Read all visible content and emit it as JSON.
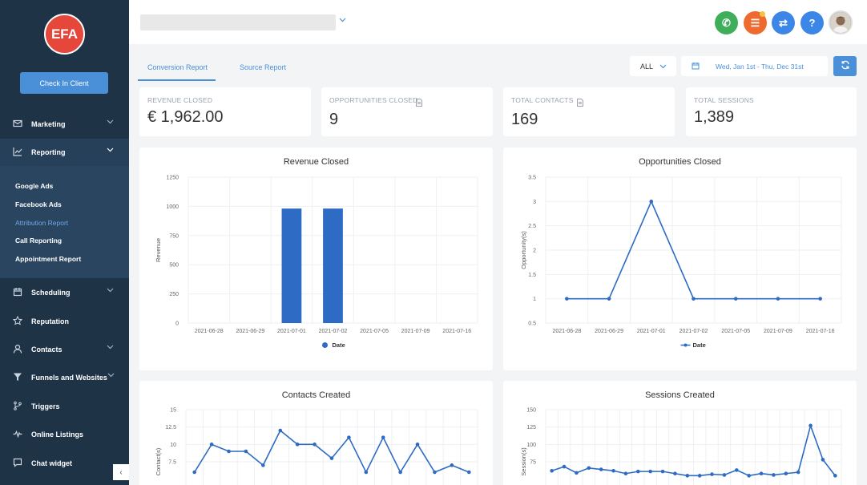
{
  "sidebar": {
    "logo_text": "EFA",
    "checkin_label": "Check In Client",
    "items": [
      {
        "label": "Marketing",
        "icon": "mail-icon"
      },
      {
        "label": "Reporting",
        "icon": "chart-icon"
      },
      {
        "label": "Scheduling",
        "icon": "calendar-icon"
      },
      {
        "label": "Reputation",
        "icon": "star-icon"
      },
      {
        "label": "Contacts",
        "icon": "person-icon"
      },
      {
        "label": "Funnels and Websites",
        "icon": "filter-icon"
      },
      {
        "label": "Triggers",
        "icon": "branch-icon"
      },
      {
        "label": "Online Listings",
        "icon": "pulse-icon"
      },
      {
        "label": "Chat widget",
        "icon": "chat-icon"
      }
    ],
    "sub_items": [
      "Google Ads",
      "Facebook Ads",
      "Attribution Report",
      "Call Reporting",
      "Appointment Report"
    ],
    "collapse_glyph": "‹"
  },
  "toolbar": {
    "phone_glyph": "✆",
    "list_glyph": "☰",
    "swap_glyph": "⇄",
    "help_glyph": "?"
  },
  "tabs": [
    "Conversion Report",
    "Source Report"
  ],
  "filter": {
    "value": "ALL"
  },
  "date_range": "Wed, Jan 1st - Thu, Dec 31st",
  "stats": [
    {
      "label": "REVENUE CLOSED",
      "value": "€ 1,962.00"
    },
    {
      "label": "OPPORTUNITIES CLOSED",
      "value": "9"
    },
    {
      "label": "TOTAL CONTACTS",
      "value": "169"
    },
    {
      "label": "TOTAL SESSIONS",
      "value": "1,389"
    }
  ],
  "colors": {
    "accent": "#4a90d9",
    "series": "#2d6bc4",
    "sidebar": "#1f3347",
    "phone": "#3fae5a",
    "list": "#ee6a2e"
  },
  "chart_data": [
    {
      "type": "bar",
      "title": "Revenue Closed",
      "ylabel": "Revenue",
      "ylim": [
        0,
        1250
      ],
      "yticks": [
        "0",
        "250",
        "500",
        "750",
        "1000",
        "1250"
      ],
      "categories": [
        "2021-06-28",
        "2021-06-29",
        "2021-07-01",
        "2021-07-02",
        "2021-07-05",
        "2021-07-09",
        "2021-07-16"
      ],
      "series": [
        {
          "name": "Date",
          "values": [
            0,
            0,
            981,
            981,
            0,
            0,
            0
          ]
        }
      ],
      "legend": "bottom"
    },
    {
      "type": "line",
      "title": "Opportunities Closed",
      "ylabel": "Opportunity(s)",
      "ylim": [
        0.5,
        3.5
      ],
      "yticks": [
        "0.5",
        "1",
        "1.5",
        "2",
        "2.5",
        "3",
        "3.5"
      ],
      "categories": [
        "2021-06-28",
        "2021-06-29",
        "2021-07-01",
        "2021-07-02",
        "2021-07-05",
        "2021-07-09",
        "2021-07-16"
      ],
      "series": [
        {
          "name": "Date",
          "values": [
            1,
            1,
            3,
            1,
            1,
            1,
            1
          ]
        }
      ],
      "legend": "bottom"
    },
    {
      "type": "line",
      "title": "Contacts Created",
      "ylabel": "Contact(s)",
      "ylim": [
        0,
        15
      ],
      "yticks": [
        "7.5",
        "10",
        "12.5",
        "15"
      ],
      "series": [
        {
          "name": "",
          "values": [
            6,
            10,
            9,
            9,
            7,
            12,
            10,
            10,
            8,
            11,
            6,
            11,
            6,
            10,
            6,
            7,
            6
          ]
        }
      ]
    },
    {
      "type": "line",
      "title": "Sessions Created",
      "ylabel": "Session(s)",
      "ylim": [
        0,
        150
      ],
      "yticks": [
        "75",
        "100",
        "125",
        "150"
      ],
      "series": [
        {
          "name": "",
          "values": [
            62,
            68,
            59,
            66,
            64,
            62,
            58,
            61,
            61,
            61,
            58,
            55,
            55,
            57,
            56,
            63,
            55,
            58,
            56,
            58,
            60,
            127,
            78,
            55
          ]
        }
      ]
    }
  ]
}
